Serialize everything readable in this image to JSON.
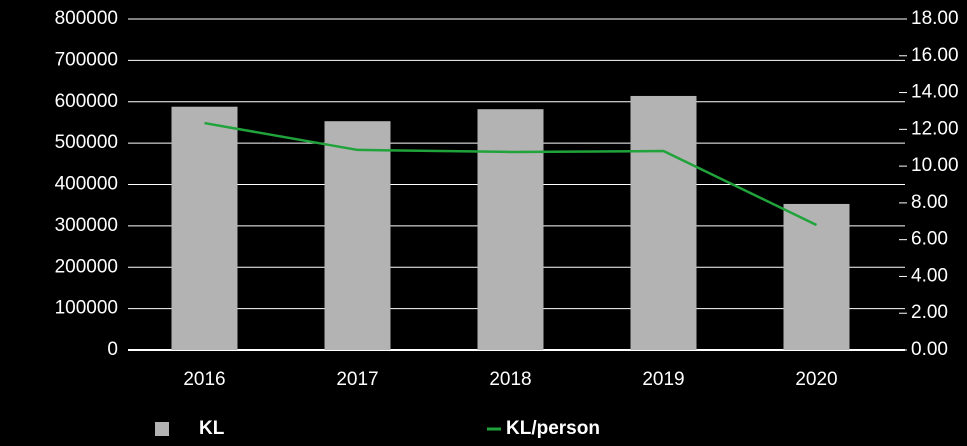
{
  "chart_data": {
    "type": "bar-line",
    "categories": [
      "2016",
      "2017",
      "2018",
      "2019",
      "2020"
    ],
    "series": [
      {
        "name": "KL",
        "type": "bar",
        "color": "#b3b3b3",
        "values": [
          588000,
          553000,
          582000,
          614000,
          353000
        ]
      },
      {
        "name": "KL/person",
        "type": "line",
        "color": "#1fa33a",
        "axis": "y2",
        "values": [
          12.34,
          10.88,
          10.77,
          10.82,
          6.8
        ]
      }
    ],
    "ylim": [
      0,
      800000
    ],
    "yticks": [
      0,
      100000,
      200000,
      300000,
      400000,
      500000,
      600000,
      700000,
      800000
    ],
    "y2lim": [
      0,
      18
    ],
    "y2ticks": [
      {
        "value": 0,
        "label": "0.00"
      },
      {
        "value": 2,
        "label": "2.00"
      },
      {
        "value": 4,
        "label": "4.00"
      },
      {
        "value": 6,
        "label": "6.00"
      },
      {
        "value": 8,
        "label": "8.00"
      },
      {
        "value": 10,
        "label": "10.00"
      },
      {
        "value": 12,
        "label": "12.00"
      },
      {
        "value": 14,
        "label": "14.00"
      },
      {
        "value": 16,
        "label": "16.00"
      },
      {
        "value": 18,
        "label": "18.00"
      }
    ],
    "grid": true,
    "legend": "bottom"
  }
}
